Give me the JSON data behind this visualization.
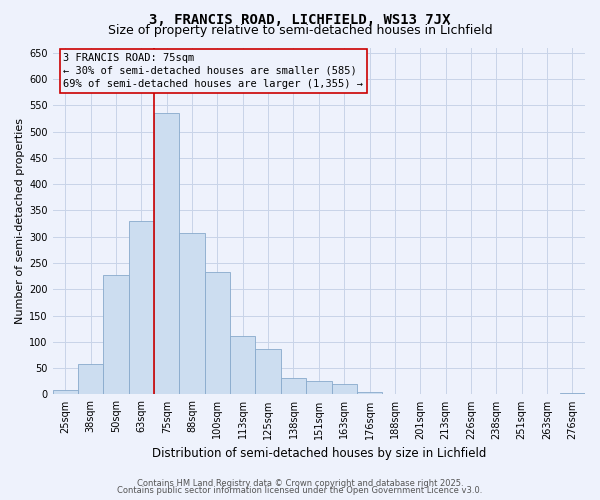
{
  "title": "3, FRANCIS ROAD, LICHFIELD, WS13 7JX",
  "subtitle": "Size of property relative to semi-detached houses in Lichfield",
  "xlabel": "Distribution of semi-detached houses by size in Lichfield",
  "ylabel": "Number of semi-detached properties",
  "categories": [
    "25sqm",
    "38sqm",
    "50sqm",
    "63sqm",
    "75sqm",
    "88sqm",
    "100sqm",
    "113sqm",
    "125sqm",
    "138sqm",
    "151sqm",
    "163sqm",
    "176sqm",
    "188sqm",
    "201sqm",
    "213sqm",
    "226sqm",
    "238sqm",
    "251sqm",
    "263sqm",
    "276sqm"
  ],
  "values": [
    8,
    58,
    228,
    330,
    535,
    308,
    232,
    112,
    87,
    32,
    26,
    20,
    4,
    0,
    0,
    0,
    0,
    0,
    0,
    0,
    2
  ],
  "bar_color": "#ccddf0",
  "bar_edge_color": "#88aacc",
  "property_line_index": 4,
  "property_line_color": "#cc0000",
  "annotation_line1": "3 FRANCIS ROAD: 75sqm",
  "annotation_line2": "← 30% of semi-detached houses are smaller (585)",
  "annotation_line3": "69% of semi-detached houses are larger (1,355) →",
  "annotation_box_color": "#cc0000",
  "ylim": [
    0,
    660
  ],
  "yticks": [
    0,
    50,
    100,
    150,
    200,
    250,
    300,
    350,
    400,
    450,
    500,
    550,
    600,
    650
  ],
  "grid_color": "#c8d4e8",
  "background_color": "#eef2fc",
  "footer_line1": "Contains HM Land Registry data © Crown copyright and database right 2025.",
  "footer_line2": "Contains public sector information licensed under the Open Government Licence v3.0.",
  "title_fontsize": 10,
  "subtitle_fontsize": 9,
  "xlabel_fontsize": 8.5,
  "ylabel_fontsize": 8,
  "tick_fontsize": 7,
  "footer_fontsize": 6,
  "annot_fontsize": 7.5
}
